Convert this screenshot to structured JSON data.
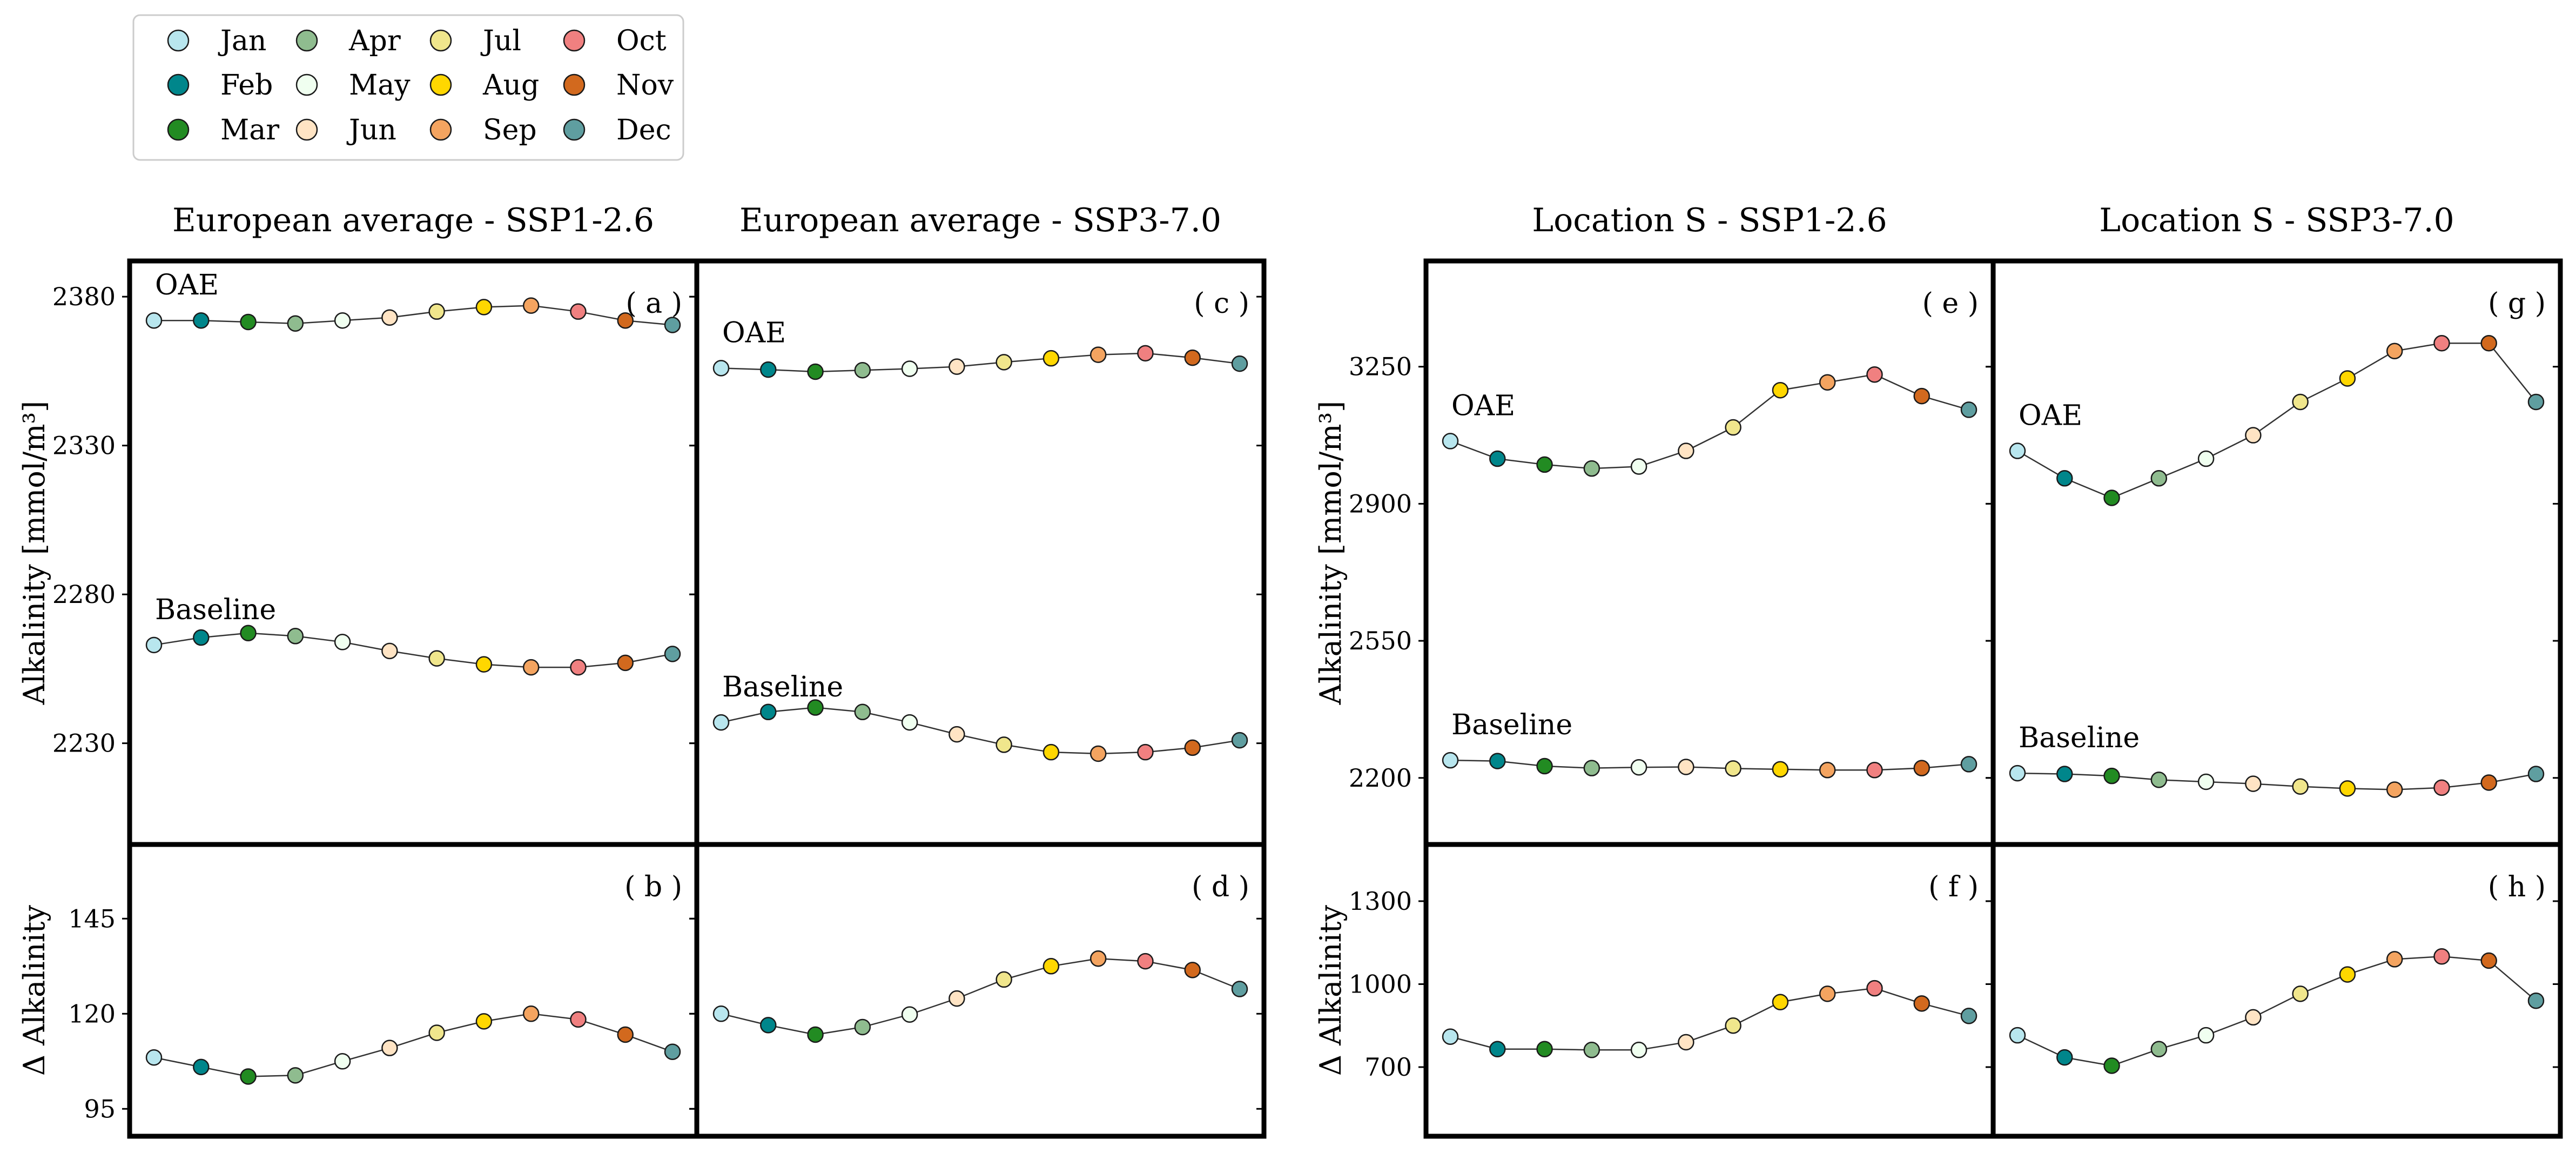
{
  "months": [
    "Jan",
    "Feb",
    "Mar",
    "Apr",
    "May",
    "Jun",
    "Jul",
    "Aug",
    "Sep",
    "Oct",
    "Nov",
    "Dec"
  ],
  "month_colors": [
    "#b8e6ee",
    "#00868b",
    "#228b22",
    "#8fbc8f",
    "#f0fff0",
    "#ffe4c4",
    "#f0e68c",
    "#ffd700",
    "#f4a460",
    "#f08080",
    "#d2691e",
    "#5f9ea0"
  ],
  "legend": {
    "placement": "top-left"
  },
  "chart_data": [
    {
      "type": "line",
      "id": "a",
      "letter": "( a )",
      "title": "European average - SSP1-2.6",
      "ylabel": "Alkalinity [mmol/m³]",
      "ylim": [
        2196,
        2392
      ],
      "yticks": [
        2230,
        2280,
        2330,
        2380
      ],
      "series": [
        {
          "name": "OAE",
          "values": [
            2372,
            2372,
            2371.5,
            2371,
            2372,
            2373,
            2375,
            2376.5,
            2377,
            2375,
            2372,
            2370.5
          ]
        },
        {
          "name": "Baseline",
          "values": [
            2263,
            2265.5,
            2267,
            2266,
            2264,
            2261,
            2258.5,
            2256.5,
            2255.5,
            2255.5,
            2257,
            2260
          ]
        }
      ]
    },
    {
      "type": "line",
      "id": "b",
      "letter": "( b )",
      "title": "",
      "ylabel": "Δ Alkalinity",
      "ylim": [
        87.8,
        164.5
      ],
      "yticks": [
        95,
        120,
        145
      ],
      "series": [
        {
          "name": "",
          "values": [
            108.5,
            106,
            103.5,
            103.8,
            107.5,
            111,
            115,
            118,
            120,
            118.5,
            114.5,
            110
          ]
        }
      ]
    },
    {
      "type": "line",
      "id": "c",
      "letter": "( c )",
      "title": "European average - SSP3-7.0",
      "ylabel": "",
      "ylim": [
        2196,
        2392
      ],
      "yticks": [
        2230,
        2280,
        2330,
        2380
      ],
      "series": [
        {
          "name": "OAE",
          "values": [
            2356,
            2355.5,
            2354.8,
            2355.3,
            2355.8,
            2356.5,
            2358,
            2359.3,
            2360.5,
            2361,
            2359.5,
            2357.5
          ]
        },
        {
          "name": "Baseline",
          "values": [
            2237,
            2240.5,
            2242,
            2240.5,
            2237,
            2233,
            2229.5,
            2227,
            2226.5,
            2227,
            2228.5,
            2231
          ]
        }
      ]
    },
    {
      "type": "line",
      "id": "d",
      "letter": "( d )",
      "title": "",
      "ylabel": "",
      "ylim": [
        87.8,
        164.5
      ],
      "yticks": [
        95,
        120,
        145
      ],
      "series": [
        {
          "name": "",
          "values": [
            120,
            117,
            114.5,
            116.5,
            119.8,
            124,
            129,
            132.5,
            134.5,
            133.8,
            131.5,
            126.5
          ]
        }
      ]
    },
    {
      "type": "line",
      "id": "e",
      "letter": "( e )",
      "title": "Location S - SSP1-2.6",
      "ylabel": "Alkalinity [mmol/m³]",
      "ylim": [
        2030,
        3520
      ],
      "yticks": [
        2200,
        2550,
        2900,
        3250
      ],
      "series": [
        {
          "name": "OAE",
          "values": [
            3060,
            3015,
            3000,
            2990,
            2995,
            3035,
            3095,
            3190,
            3210,
            3230,
            3175,
            3140
          ]
        },
        {
          "name": "Baseline",
          "values": [
            2245,
            2243,
            2230,
            2225,
            2227,
            2228,
            2224,
            2222,
            2220,
            2220,
            2225,
            2235
          ]
        }
      ]
    },
    {
      "type": "line",
      "id": "f",
      "letter": "( f )",
      "title": "",
      "ylabel": "Δ Alkalinity",
      "ylim": [
        450,
        1505
      ],
      "yticks": [
        700,
        1000,
        1300
      ],
      "series": [
        {
          "name": "",
          "values": [
            810,
            765,
            765,
            762,
            762,
            790,
            850,
            935,
            965,
            985,
            930,
            885
          ]
        }
      ]
    },
    {
      "type": "line",
      "id": "g",
      "letter": "( g )",
      "title": "Location S - SSP3-7.0",
      "ylabel": "",
      "ylim": [
        2030,
        3520
      ],
      "yticks": [
        2200,
        2550,
        2900,
        3250
      ],
      "series": [
        {
          "name": "OAE",
          "values": [
            3035,
            2965,
            2915,
            2965,
            3015,
            3075,
            3160,
            3220,
            3290,
            3310,
            3310,
            3160
          ]
        },
        {
          "name": "Baseline",
          "values": [
            2212,
            2210,
            2205,
            2195,
            2190,
            2185,
            2178,
            2173,
            2170,
            2175,
            2188,
            2210
          ]
        }
      ]
    },
    {
      "type": "line",
      "id": "h",
      "letter": "( h )",
      "title": "",
      "ylabel": "",
      "ylim": [
        450,
        1505
      ],
      "yticks": [
        700,
        1000,
        1300
      ],
      "series": [
        {
          "name": "",
          "values": [
            815,
            735,
            705,
            765,
            815,
            880,
            965,
            1035,
            1090,
            1100,
            1085,
            940
          ]
        }
      ]
    }
  ]
}
